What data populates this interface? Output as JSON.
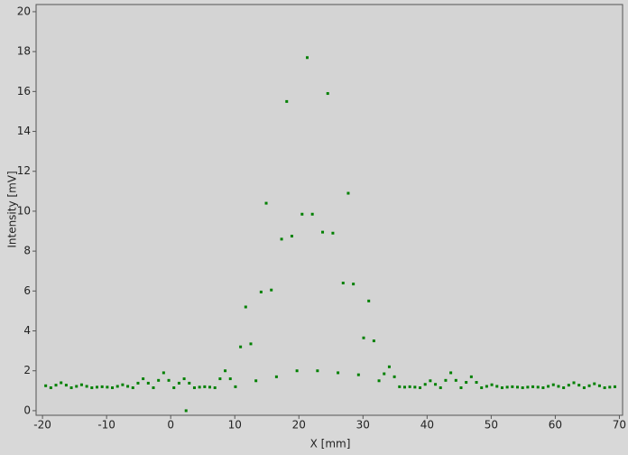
{
  "chart_data": {
    "type": "scatter",
    "xlabel": "X [mm]",
    "ylabel": "Intensity [mV]",
    "color": "#008000",
    "xlim": [
      -21,
      70.5
    ],
    "ylim": [
      -0.23,
      20.36
    ],
    "xticks": [
      -20,
      -10,
      0,
      10,
      20,
      30,
      40,
      50,
      60,
      70
    ],
    "yticks": [
      0,
      2,
      4,
      6,
      8,
      10,
      12,
      14,
      16,
      18,
      20
    ],
    "grid": false,
    "x": [
      -19.5,
      -18.7,
      -17.9,
      -17.1,
      -16.3,
      -15.5,
      -14.7,
      -13.9,
      -13.1,
      -12.3,
      -11.5,
      -10.7,
      -9.9,
      -9.1,
      -8.3,
      -7.5,
      -6.7,
      -5.9,
      -5.1,
      -4.3,
      -3.5,
      -2.7,
      -1.9,
      -1.1,
      -0.3,
      0.5,
      1.3,
      2.1,
      2.9,
      3.7,
      4.5,
      5.3,
      6.1,
      6.9,
      7.7,
      8.5,
      9.3,
      10.1,
      10.9,
      11.7,
      12.5,
      13.3,
      14.1,
      14.9,
      15.7,
      16.5,
      17.3,
      18.1,
      18.9,
      19.7,
      20.5,
      21.3,
      22.1,
      22.9,
      23.7,
      24.5,
      25.3,
      26.1,
      26.9,
      27.7,
      28.5,
      29.3,
      30.1,
      30.9,
      31.7,
      32.5,
      33.3,
      34.1,
      34.9,
      35.7,
      36.5,
      37.3,
      38.1,
      38.9,
      39.7,
      40.5,
      41.3,
      42.1,
      42.9,
      43.7,
      44.5,
      45.3,
      46.1,
      46.9,
      47.7,
      48.5,
      49.3,
      50.1,
      50.9,
      51.7,
      52.5,
      53.3,
      54.1,
      54.9,
      55.7,
      56.5,
      57.3,
      58.1,
      58.9,
      59.7,
      60.5,
      61.3,
      62.1,
      62.9,
      63.7,
      64.5,
      65.3,
      66.1,
      66.9,
      67.7,
      68.5,
      69.3,
      2.4
    ],
    "values": [
      1.25,
      1.15,
      1.28,
      1.4,
      1.28,
      1.15,
      1.22,
      1.3,
      1.22,
      1.15,
      1.18,
      1.2,
      1.18,
      1.15,
      1.22,
      1.3,
      1.22,
      1.15,
      1.38,
      1.6,
      1.38,
      1.15,
      1.52,
      1.9,
      1.52,
      1.15,
      1.38,
      1.6,
      1.38,
      1.15,
      1.18,
      1.2,
      1.18,
      1.15,
      1.6,
      2.0,
      1.6,
      1.2,
      3.2,
      5.2,
      3.35,
      1.5,
      5.95,
      10.4,
      6.05,
      1.7,
      8.6,
      15.5,
      8.75,
      2.0,
      9.85,
      17.7,
      9.85,
      2.0,
      8.95,
      15.9,
      8.9,
      1.9,
      6.4,
      10.9,
      6.35,
      1.8,
      3.65,
      5.5,
      3.5,
      1.5,
      1.85,
      2.2,
      1.7,
      1.2,
      1.18,
      1.2,
      1.18,
      1.15,
      1.32,
      1.5,
      1.32,
      1.15,
      1.52,
      1.9,
      1.52,
      1.15,
      1.42,
      1.7,
      1.42,
      1.15,
      1.22,
      1.3,
      1.22,
      1.15,
      1.18,
      1.2,
      1.18,
      1.15,
      1.18,
      1.2,
      1.18,
      1.15,
      1.22,
      1.3,
      1.22,
      1.15,
      1.28,
      1.4,
      1.28,
      1.15,
      1.25,
      1.35,
      1.25,
      1.15,
      1.18,
      1.2,
      0
    ]
  }
}
